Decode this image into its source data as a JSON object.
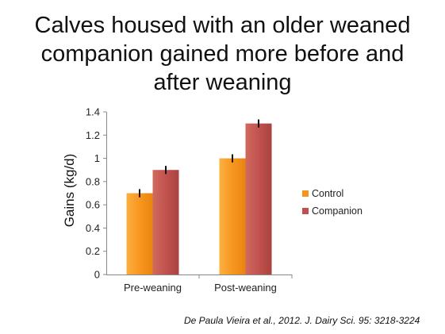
{
  "slide": {
    "title_lines": [
      "Calves housed with an older weaned",
      "companion gained more before and",
      "after weaning"
    ],
    "citation": "De Paula Vieira et al., 2012. J. Dairy Sci. 95: 3218-3224"
  },
  "chart_data": {
    "type": "bar",
    "categories": [
      "Pre-weaning",
      "Post-weaning"
    ],
    "series": [
      {
        "name": "Control",
        "values": [
          0.7,
          1.0
        ],
        "errors": [
          0.035,
          0.035
        ],
        "color": "#f7941d"
      },
      {
        "name": "Companion",
        "values": [
          0.9,
          1.3
        ],
        "errors": [
          0.035,
          0.035
        ],
        "color": "#c0504d"
      }
    ],
    "ylabel": "Gains (kg/d)",
    "xlabel": "",
    "ylim": [
      0,
      1.4
    ],
    "yticks": [
      "0",
      "0.2",
      "0.4",
      "0.6",
      "0.8",
      "1",
      "1.2",
      "1.4"
    ],
    "grid": false,
    "legend_position": "right"
  }
}
